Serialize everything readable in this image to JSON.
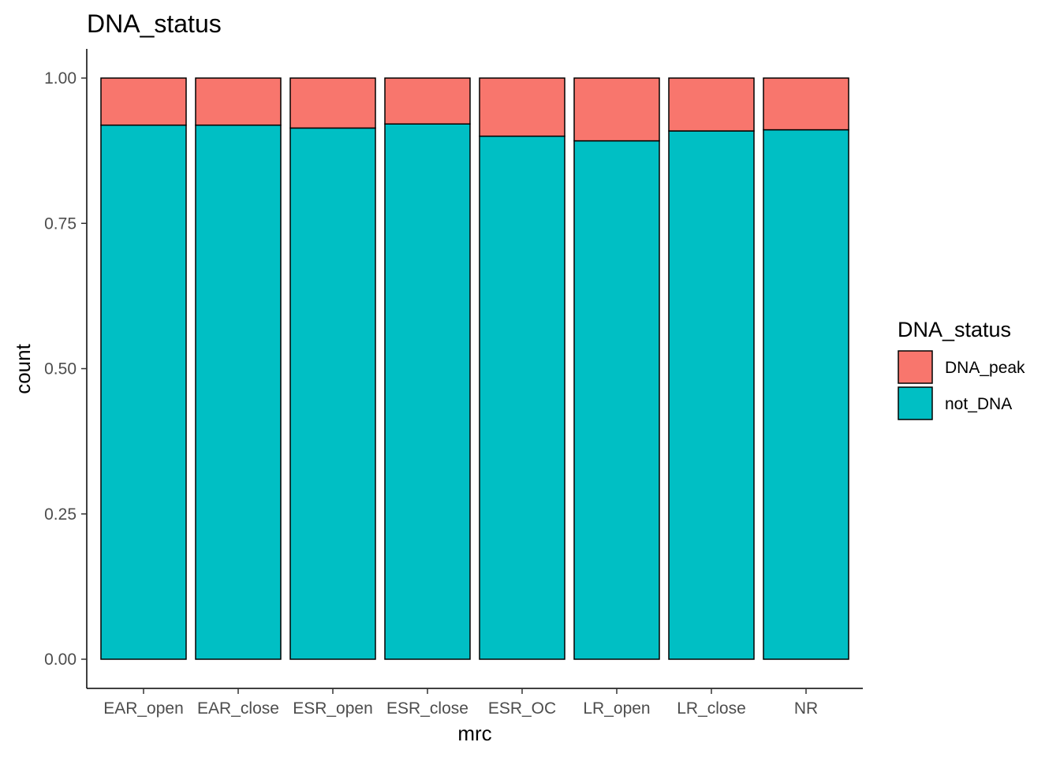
{
  "chart_data": {
    "type": "bar",
    "stacked": true,
    "title": "DNA_status",
    "xlabel": "mrc",
    "ylabel": "count",
    "ylim": [
      0,
      1
    ],
    "yticks": [
      "0.00",
      "0.25",
      "0.50",
      "0.75",
      "1.00"
    ],
    "categories": [
      "EAR_open",
      "EAR_close",
      "ESR_open",
      "ESR_close",
      "ESR_OC",
      "LR_open",
      "LR_close",
      "NR"
    ],
    "series": [
      {
        "name": "not_DNA",
        "color": "#00BFC4",
        "values": [
          0.919,
          0.919,
          0.914,
          0.921,
          0.9,
          0.892,
          0.909,
          0.911
        ]
      },
      {
        "name": "DNA_peak",
        "color": "#F8766D",
        "values": [
          0.081,
          0.081,
          0.086,
          0.079,
          0.1,
          0.108,
          0.091,
          0.089
        ]
      }
    ],
    "legend": {
      "title": "DNA_status",
      "position": "right",
      "order": [
        "DNA_peak",
        "not_DNA"
      ]
    },
    "grid": false
  }
}
